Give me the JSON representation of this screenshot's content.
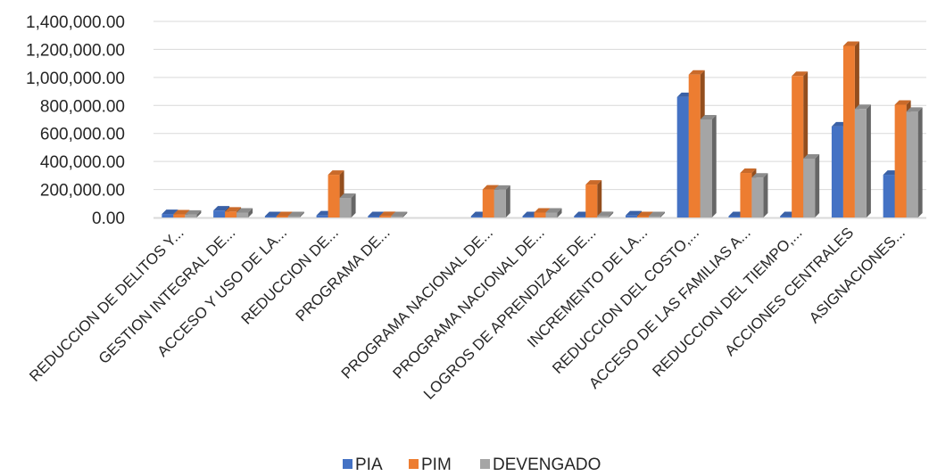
{
  "chart_data": {
    "type": "bar",
    "title": "",
    "xlabel": "",
    "ylabel": "",
    "ylim": [
      0,
      1400000
    ],
    "yticks": [
      0,
      200000,
      400000,
      600000,
      800000,
      1000000,
      1200000,
      1400000
    ],
    "ytick_labels": [
      "0.00",
      "200,000.00",
      "400,000.00",
      "600,000.00",
      "800,000.00",
      "1,000,000.00",
      "1,200,000.00",
      "1,400,000.00"
    ],
    "grid": true,
    "legend_position": "bottom",
    "categories": [
      "REDUCCION DE DELITOS Y...",
      "GESTION INTEGRAL DE...",
      "ACCESO Y USO DE LA...",
      "REDUCCION DE...",
      "PROGRAMA DE...",
      "",
      "PROGRAMA NACIONAL DE...",
      "PROGRAMA NACIONAL DE...",
      "LOGROS DE APRENDIZAJE DE...",
      "INCREMENTO DE LA...",
      "REDUCCION DEL COSTO,...",
      "ACCESO DE LAS FAMILIAS A...",
      "REDUCCION DEL TIEMPO,...",
      "ACCIONES CENTRALES",
      "ASIGNACIONES..."
    ],
    "series": [
      {
        "name": "PIA",
        "color": "#4472c4",
        "values": [
          25000,
          50000,
          3000,
          15000,
          3000,
          0,
          3000,
          5000,
          3000,
          15000,
          860000,
          3000,
          3000,
          650000,
          305000
        ]
      },
      {
        "name": "PIM",
        "color": "#ed7d31",
        "values": [
          22000,
          42000,
          8000,
          305000,
          10000,
          0,
          200000,
          35000,
          235000,
          8000,
          1020000,
          318000,
          1010000,
          1225000,
          805000
        ]
      },
      {
        "name": "DEVENGADO",
        "color": "#a5a5a5",
        "values": [
          20000,
          35000,
          6000,
          140000,
          6000,
          0,
          198000,
          35000,
          10000,
          5000,
          700000,
          285000,
          420000,
          775000,
          755000
        ]
      }
    ]
  }
}
